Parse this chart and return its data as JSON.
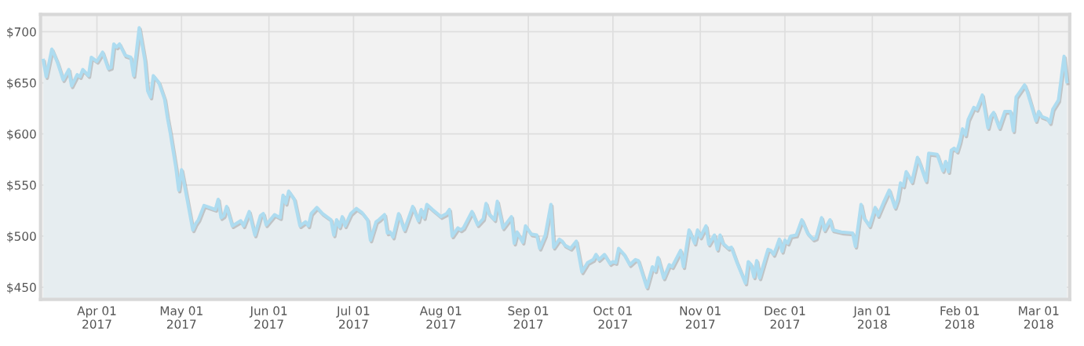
{
  "chart_data": {
    "type": "area",
    "x": [
      "2017-03-13",
      "2017-03-14",
      "2017-03-16",
      "2017-03-18",
      "2017-03-20",
      "2017-03-22",
      "2017-03-23",
      "2017-03-25",
      "2017-03-26",
      "2017-03-27",
      "2017-03-29",
      "2017-03-30",
      "2017-04-01",
      "2017-04-03",
      "2017-04-05",
      "2017-04-06",
      "2017-04-07",
      "2017-04-08",
      "2017-04-09",
      "2017-04-11",
      "2017-04-13",
      "2017-04-14",
      "2017-04-16",
      "2017-04-18",
      "2017-04-19",
      "2017-04-20",
      "2017-04-21",
      "2017-04-23",
      "2017-04-25",
      "2017-04-26",
      "2017-04-27",
      "2017-04-29",
      "2017-04-30",
      "2017-05-01",
      "2017-05-03",
      "2017-05-05",
      "2017-05-06",
      "2017-05-07",
      "2017-05-09",
      "2017-05-12",
      "2017-05-13",
      "2017-05-14",
      "2017-05-15",
      "2017-05-16",
      "2017-05-17",
      "2017-05-19",
      "2017-05-22",
      "2017-05-23",
      "2017-05-25",
      "2017-05-27",
      "2017-05-29",
      "2017-05-30",
      "2017-05-31",
      "2017-06-03",
      "2017-06-05",
      "2017-06-06",
      "2017-06-07",
      "2017-06-08",
      "2017-06-10",
      "2017-06-12",
      "2017-06-14",
      "2017-06-15",
      "2017-06-16",
      "2017-06-18",
      "2017-06-20",
      "2017-06-23",
      "2017-06-24",
      "2017-06-25",
      "2017-06-26",
      "2017-06-27",
      "2017-06-28",
      "2017-06-30",
      "2017-07-02",
      "2017-07-04",
      "2017-07-06",
      "2017-07-07",
      "2017-07-09",
      "2017-07-10",
      "2017-07-12",
      "2017-07-13",
      "2017-07-14",
      "2017-07-15",
      "2017-07-17",
      "2017-07-19",
      "2017-07-22",
      "2017-07-24",
      "2017-07-25",
      "2017-07-26",
      "2017-07-27",
      "2017-07-29",
      "2017-08-01",
      "2017-08-03",
      "2017-08-04",
      "2017-08-05",
      "2017-08-07",
      "2017-08-08",
      "2017-08-09",
      "2017-08-12",
      "2017-08-14",
      "2017-08-16",
      "2017-08-17",
      "2017-08-18",
      "2017-08-20",
      "2017-08-21",
      "2017-08-23",
      "2017-08-26",
      "2017-08-27",
      "2017-08-28",
      "2017-08-30",
      "2017-08-31",
      "2017-09-02",
      "2017-09-04",
      "2017-09-05",
      "2017-09-07",
      "2017-09-09",
      "2017-09-10",
      "2017-09-12",
      "2017-09-13",
      "2017-09-14",
      "2017-09-16",
      "2017-09-18",
      "2017-09-20",
      "2017-09-22",
      "2017-09-24",
      "2017-09-25",
      "2017-09-26",
      "2017-09-28",
      "2017-09-30",
      "2017-10-01",
      "2017-10-02",
      "2017-10-03",
      "2017-10-05",
      "2017-10-07",
      "2017-10-09",
      "2017-10-10",
      "2017-10-13",
      "2017-10-15",
      "2017-10-16",
      "2017-10-17",
      "2017-10-19",
      "2017-10-21",
      "2017-10-22",
      "2017-10-25",
      "2017-10-26",
      "2017-10-28",
      "2017-10-30",
      "2017-10-31",
      "2017-11-01",
      "2017-11-03",
      "2017-11-04",
      "2017-11-06",
      "2017-11-07",
      "2017-11-08",
      "2017-11-09",
      "2017-11-11",
      "2017-11-12",
      "2017-11-14",
      "2017-11-17",
      "2017-11-18",
      "2017-11-19",
      "2017-11-20",
      "2017-11-21",
      "2017-11-22",
      "2017-11-25",
      "2017-11-26",
      "2017-11-27",
      "2017-11-28",
      "2017-11-29",
      "2017-11-30",
      "2017-12-01",
      "2017-12-02",
      "2017-12-03",
      "2017-12-05",
      "2017-12-07",
      "2017-12-09",
      "2017-12-11",
      "2017-12-12",
      "2017-12-14",
      "2017-12-15",
      "2017-12-17",
      "2017-12-18",
      "2017-12-21",
      "2017-12-25",
      "2017-12-26",
      "2017-12-28",
      "2017-12-29",
      "2017-12-31",
      "2018-01-02",
      "2018-01-03",
      "2018-01-05",
      "2018-01-07",
      "2018-01-09",
      "2018-01-10",
      "2018-01-11",
      "2018-01-12",
      "2018-01-13",
      "2018-01-15",
      "2018-01-17",
      "2018-01-18",
      "2018-01-20",
      "2018-01-21",
      "2018-01-24",
      "2018-01-26",
      "2018-01-27",
      "2018-01-28",
      "2018-01-29",
      "2018-01-30",
      "2018-01-31",
      "2018-02-01",
      "2018-02-02",
      "2018-02-03",
      "2018-02-04",
      "2018-02-06",
      "2018-02-07",
      "2018-02-09",
      "2018-02-11",
      "2018-02-12",
      "2018-02-13",
      "2018-02-15",
      "2018-02-17",
      "2018-02-19",
      "2018-02-20",
      "2018-02-21",
      "2018-02-22",
      "2018-02-24",
      "2018-02-25",
      "2018-02-28",
      "2018-03-01",
      "2018-03-02",
      "2018-03-04",
      "2018-03-05",
      "2018-03-06",
      "2018-03-08",
      "2018-03-10",
      "2018-03-11"
    ],
    "series": [
      {
        "color": "#aedcf0",
        "values": [
          672,
          656,
          683,
          670,
          653,
          663,
          647,
          658,
          656,
          663,
          657,
          675,
          671,
          680,
          664,
          665,
          688,
          685,
          688,
          677,
          675,
          657,
          704,
          672,
          642,
          636,
          657,
          650,
          634,
          616,
          601,
          567,
          545,
          565,
          536,
          506,
          512,
          516,
          530,
          527,
          526,
          536,
          518,
          520,
          529,
          510,
          515,
          510,
          524,
          501,
          520,
          522,
          511,
          521,
          518,
          540,
          532,
          544,
          536,
          510,
          514,
          510,
          522,
          528,
          522,
          516,
          501,
          516,
          509,
          519,
          510,
          522,
          527,
          523,
          516,
          496,
          514,
          516,
          521,
          503,
          504,
          499,
          522,
          506,
          529,
          515,
          526,
          518,
          531,
          526,
          519,
          522,
          526,
          500,
          508,
          506,
          508,
          524,
          511,
          517,
          532,
          522,
          516,
          534,
          508,
          519,
          493,
          504,
          494,
          510,
          502,
          501,
          488,
          501,
          531,
          489,
          497,
          495,
          491,
          488,
          495,
          465,
          474,
          477,
          482,
          477,
          482,
          473,
          475,
          474,
          488,
          482,
          472,
          477,
          476,
          450,
          470,
          466,
          479,
          459,
          472,
          470,
          486,
          470,
          506,
          493,
          506,
          499,
          510,
          492,
          501,
          487,
          501,
          493,
          488,
          489,
          474,
          454,
          475,
          472,
          460,
          476,
          459,
          487,
          486,
          482,
          489,
          497,
          485,
          496,
          493,
          500,
          501,
          516,
          503,
          497,
          498,
          518,
          506,
          516,
          506,
          504,
          503,
          490,
          531,
          518,
          510,
          528,
          520,
          533,
          545,
          528,
          536,
          552,
          549,
          563,
          553,
          577,
          570,
          554,
          581,
          580,
          564,
          573,
          563,
          584,
          586,
          583,
          592,
          605,
          599,
          614,
          626,
          624,
          638,
          606,
          617,
          621,
          606,
          622,
          622,
          603,
          636,
          640,
          648,
          641,
          613,
          622,
          617,
          615,
          611,
          624,
          633,
          676,
          651
        ]
      }
    ],
    "xlim": [
      "2017-03-12",
      "2018-03-12"
    ],
    "xticks": [
      {
        "value": "2017-04-01",
        "label": "Apr 01\n2017"
      },
      {
        "value": "2017-05-01",
        "label": "May 01\n2017"
      },
      {
        "value": "2017-06-01",
        "label": "Jun 01\n2017"
      },
      {
        "value": "2017-07-01",
        "label": "Jul 01\n2017"
      },
      {
        "value": "2017-08-01",
        "label": "Aug 01\n2017"
      },
      {
        "value": "2017-09-01",
        "label": "Sep 01\n2017"
      },
      {
        "value": "2017-10-01",
        "label": "Oct 01\n2017"
      },
      {
        "value": "2017-11-01",
        "label": "Nov 01\n2017"
      },
      {
        "value": "2017-12-01",
        "label": "Dec 01\n2017"
      },
      {
        "value": "2018-01-01",
        "label": "Jan 01\n2018"
      },
      {
        "value": "2018-02-01",
        "label": "Feb 01\n2018"
      },
      {
        "value": "2018-03-01",
        "label": "Mar 01\n2018"
      }
    ],
    "ylim": [
      438,
      717
    ],
    "yticks": [
      {
        "value": 450,
        "label": "$450"
      },
      {
        "value": 500,
        "label": "$500"
      },
      {
        "value": 550,
        "label": "$550"
      },
      {
        "value": 600,
        "label": "$600"
      },
      {
        "value": 650,
        "label": "$650"
      },
      {
        "value": 700,
        "label": "$700"
      }
    ],
    "grid": true,
    "legend": false
  }
}
